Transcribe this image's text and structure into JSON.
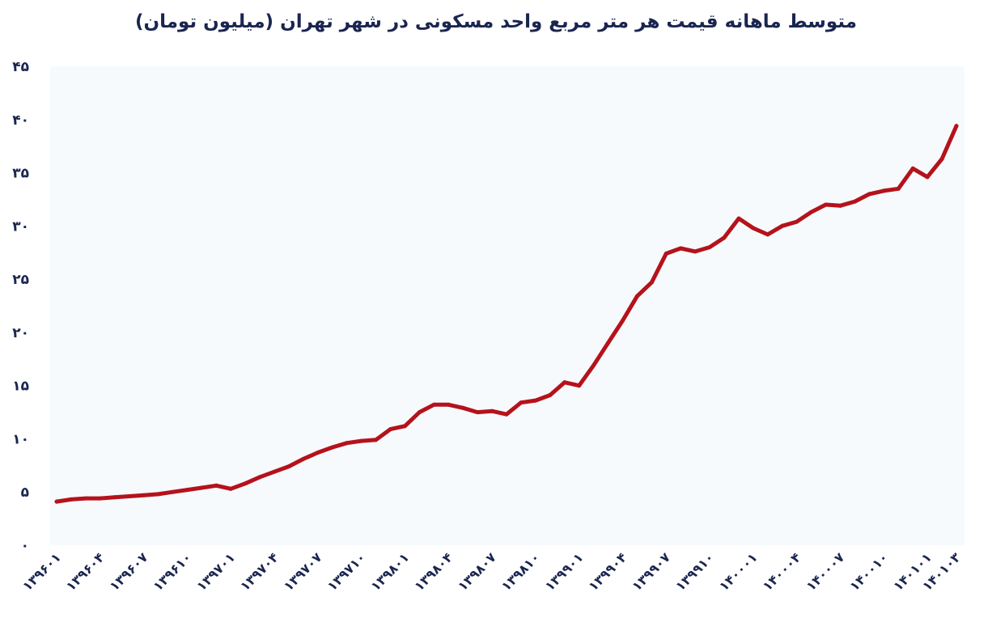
{
  "chart_data": {
    "type": "line",
    "title": "متوسط ماهانه قیمت هر متر مربع واحد مسکونی در شهر تهران (میلیون تومان)",
    "xlabel": "",
    "ylabel": "",
    "ylim": [
      0,
      45
    ],
    "y_ticks": [
      "۰",
      "۵",
      "۱۰",
      "۱۵",
      "۲۰",
      "۲۵",
      "۳۰",
      "۳۵",
      "۴۰",
      "۴۵"
    ],
    "x_tick_labels": [
      "۱۳۹۶۰۱",
      "۱۳۹۶۰۴",
      "۱۳۹۶۰۷",
      "۱۳۹۶۱۰",
      "۱۳۹۷۰۱",
      "۱۳۹۷۰۴",
      "۱۳۹۷۰۷",
      "۱۳۹۷۱۰",
      "۱۳۹۸۰۱",
      "۱۳۹۸۰۴",
      "۱۳۹۸۰۷",
      "۱۳۹۸۱۰",
      "۱۳۹۹۰۱",
      "۱۳۹۹۰۴",
      "۱۳۹۹۰۷",
      "۱۳۹۹۱۰",
      "۱۴۰۰۰۱",
      "۱۴۰۰۰۴",
      "۱۴۰۰۰۷",
      "۱۴۰۰۱۰",
      "۱۴۰۱۰۱",
      "۱۴۰۱۰۳"
    ],
    "x_tick_index": [
      0,
      3,
      6,
      9,
      12,
      15,
      18,
      21,
      24,
      27,
      30,
      33,
      36,
      39,
      42,
      45,
      48,
      51,
      54,
      57,
      60,
      62
    ],
    "grid": false,
    "background": "#f6fafd",
    "line_color": "#b5121b",
    "series": [
      {
        "values": [
          4.1,
          4.3,
          4.4,
          4.4,
          4.5,
          4.6,
          4.7,
          4.8,
          5.0,
          5.2,
          5.4,
          5.6,
          5.3,
          5.8,
          6.4,
          6.9,
          7.4,
          8.1,
          8.7,
          9.2,
          9.6,
          9.8,
          9.9,
          10.9,
          11.2,
          12.5,
          13.2,
          13.2,
          12.9,
          12.5,
          12.6,
          12.3,
          13.4,
          13.6,
          14.1,
          15.3,
          15.0,
          16.9,
          19.0,
          21.1,
          23.4,
          24.7,
          27.4,
          27.9,
          27.6,
          28.0,
          28.9,
          30.7,
          29.8,
          29.2,
          30.0,
          30.4,
          31.3,
          32.0,
          31.9,
          32.3,
          33.0,
          33.3,
          33.5,
          35.4,
          34.6,
          36.3,
          39.4
        ]
      }
    ]
  }
}
